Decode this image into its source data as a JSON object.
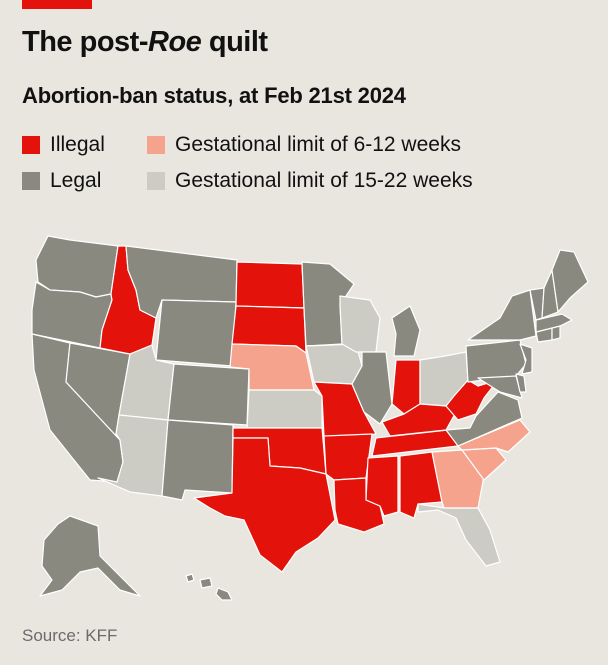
{
  "header": {
    "title_pre": "The post-",
    "title_em": "Roe",
    "title_post": " quilt",
    "subtitle": "Abortion-ban status, at Feb 21st 2024"
  },
  "legend": [
    {
      "key": "illegal",
      "label": "Illegal",
      "color": "#e3120b"
    },
    {
      "key": "limit_6_12",
      "label": "Gestational limit of 6-12 weeks",
      "color": "#f6a38e"
    },
    {
      "key": "legal",
      "label": "Legal",
      "color": "#898980"
    },
    {
      "key": "limit_15_22",
      "label": "Gestational limit of 15-22 weeks",
      "color": "#cdccc4"
    }
  ],
  "colors": {
    "illegal": "#e3120b",
    "limit_6_12": "#f6a38e",
    "legal": "#898980",
    "limit_15_22": "#cdccc4",
    "border": "#ffffff",
    "brand_red": "#e3120b",
    "background": "#e9e6df"
  },
  "map": {
    "states": [
      {
        "name": "Washington",
        "status": "legal"
      },
      {
        "name": "Oregon",
        "status": "legal"
      },
      {
        "name": "California",
        "status": "legal"
      },
      {
        "name": "Nevada",
        "status": "legal"
      },
      {
        "name": "Idaho",
        "status": "illegal"
      },
      {
        "name": "Montana",
        "status": "legal"
      },
      {
        "name": "Wyoming",
        "status": "legal"
      },
      {
        "name": "Utah",
        "status": "limit_15_22"
      },
      {
        "name": "Arizona",
        "status": "limit_15_22"
      },
      {
        "name": "Colorado",
        "status": "legal"
      },
      {
        "name": "New Mexico",
        "status": "legal"
      },
      {
        "name": "North Dakota",
        "status": "illegal"
      },
      {
        "name": "South Dakota",
        "status": "illegal"
      },
      {
        "name": "Nebraska",
        "status": "limit_6_12"
      },
      {
        "name": "Kansas",
        "status": "limit_15_22"
      },
      {
        "name": "Oklahoma",
        "status": "illegal"
      },
      {
        "name": "Texas",
        "status": "illegal"
      },
      {
        "name": "Minnesota",
        "status": "legal"
      },
      {
        "name": "Iowa",
        "status": "limit_15_22"
      },
      {
        "name": "Missouri",
        "status": "illegal"
      },
      {
        "name": "Arkansas",
        "status": "illegal"
      },
      {
        "name": "Louisiana",
        "status": "illegal"
      },
      {
        "name": "Wisconsin",
        "status": "limit_15_22"
      },
      {
        "name": "Illinois",
        "status": "legal"
      },
      {
        "name": "Michigan",
        "status": "legal"
      },
      {
        "name": "Indiana",
        "status": "illegal"
      },
      {
        "name": "Ohio",
        "status": "limit_15_22"
      },
      {
        "name": "Kentucky",
        "status": "illegal"
      },
      {
        "name": "Tennessee",
        "status": "illegal"
      },
      {
        "name": "Mississippi",
        "status": "illegal"
      },
      {
        "name": "Alabama",
        "status": "illegal"
      },
      {
        "name": "Georgia",
        "status": "limit_6_12"
      },
      {
        "name": "Florida",
        "status": "limit_15_22"
      },
      {
        "name": "South Carolina",
        "status": "limit_6_12"
      },
      {
        "name": "North Carolina",
        "status": "limit_6_12"
      },
      {
        "name": "Virginia",
        "status": "legal"
      },
      {
        "name": "West Virginia",
        "status": "illegal"
      },
      {
        "name": "Pennsylvania",
        "status": "legal"
      },
      {
        "name": "New York",
        "status": "legal"
      },
      {
        "name": "Maryland",
        "status": "legal"
      },
      {
        "name": "Delaware",
        "status": "legal"
      },
      {
        "name": "New Jersey",
        "status": "legal"
      },
      {
        "name": "Connecticut",
        "status": "legal"
      },
      {
        "name": "Rhode Island",
        "status": "legal"
      },
      {
        "name": "Massachusetts",
        "status": "legal"
      },
      {
        "name": "Vermont",
        "status": "legal"
      },
      {
        "name": "New Hampshire",
        "status": "legal"
      },
      {
        "name": "Maine",
        "status": "legal"
      },
      {
        "name": "Alaska",
        "status": "legal"
      },
      {
        "name": "Hawaii",
        "status": "legal"
      }
    ]
  },
  "source": "Source: KFF"
}
